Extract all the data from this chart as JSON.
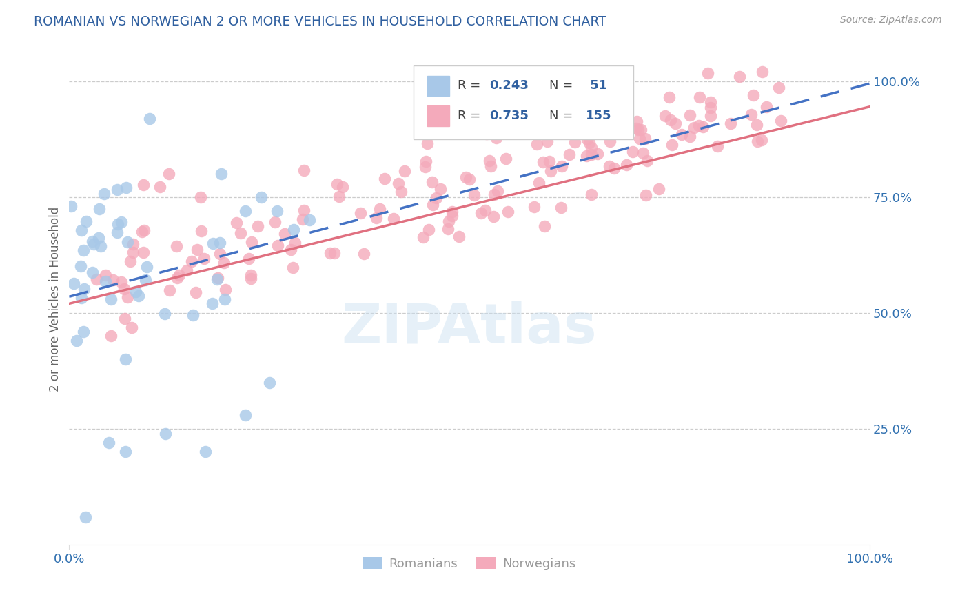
{
  "title": "ROMANIAN VS NORWEGIAN 2 OR MORE VEHICLES IN HOUSEHOLD CORRELATION CHART",
  "source_text": "Source: ZipAtlas.com",
  "ylabel": "2 or more Vehicles in Household",
  "r_romanian": 0.243,
  "n_romanian": 51,
  "r_norwegian": 0.735,
  "n_norwegian": 155,
  "blue_color": "#A8C8E8",
  "pink_color": "#F4AABB",
  "blue_line_color": "#4472C4",
  "pink_line_color": "#E07080",
  "watermark": "ZIPAtlas",
  "title_color": "#3060A0",
  "legend_text_color": "#3060A0",
  "axis_color": "#3070B0",
  "grid_color": "#CCCCCC",
  "ylabel_color": "#666666",
  "source_color": "#999999",
  "legend_border_color": "#CCCCCC",
  "bottom_legend_color": "#999999"
}
